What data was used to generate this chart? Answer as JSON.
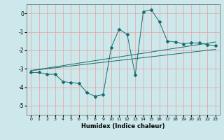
{
  "title": "",
  "xlabel": "Humidex (Indice chaleur)",
  "background_color": "#cce8ea",
  "grid_color": "#e8a0a0",
  "line_color": "#1a6b6b",
  "xlim": [
    -0.5,
    23.5
  ],
  "ylim": [
    -5.5,
    0.5
  ],
  "yticks": [
    0,
    -1,
    -2,
    -3,
    -4,
    -5
  ],
  "xticks": [
    0,
    1,
    2,
    3,
    4,
    5,
    6,
    7,
    8,
    9,
    10,
    11,
    12,
    13,
    14,
    15,
    16,
    17,
    18,
    19,
    20,
    21,
    22,
    23
  ],
  "series1_x": [
    0,
    1,
    2,
    3,
    4,
    5,
    6,
    7,
    8,
    9,
    10,
    11,
    12,
    13,
    14,
    15,
    16,
    17,
    18,
    19,
    20,
    21,
    22,
    23
  ],
  "series1_y": [
    -3.2,
    -3.2,
    -3.3,
    -3.3,
    -3.7,
    -3.75,
    -3.8,
    -4.3,
    -4.5,
    -4.4,
    -1.85,
    -0.85,
    -1.15,
    -3.35,
    0.1,
    0.2,
    -0.45,
    -1.5,
    -1.55,
    -1.65,
    -1.6,
    -1.6,
    -1.7,
    -1.75
  ],
  "series2_x": [
    0,
    23
  ],
  "series2_y": [
    -3.1,
    -1.55
  ],
  "series3_x": [
    0,
    23
  ],
  "series3_y": [
    -3.1,
    -1.95
  ]
}
